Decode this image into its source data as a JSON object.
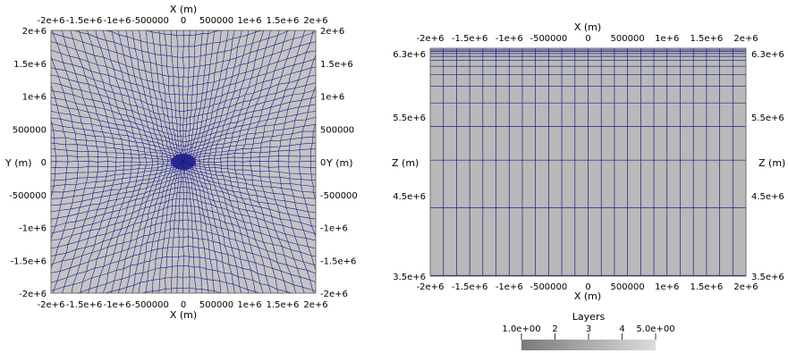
{
  "left_panel": {
    "x_title": "X (m)",
    "y_title": "Y (m)",
    "x_ticks": [
      "-2e+6",
      "-1.5e+6",
      "-1e+6",
      "-500000",
      "0",
      "500000",
      "1e+6",
      "1.5e+6",
      "2e+6"
    ],
    "y_ticks": [
      "2e+6",
      "1.5e+6",
      "1e+6",
      "500000",
      "0",
      "-500000",
      "-1e+6",
      "-1.5e+6",
      "-2e+6"
    ],
    "mesh_color": "#1a1a8c",
    "fill_color": "#c4c4c4"
  },
  "right_panel": {
    "x_title": "X (m)",
    "z_title": "Z (m)",
    "x_ticks": [
      "-2e+6",
      "-1.5e+6",
      "-1e+6",
      "-500000",
      "0",
      "500000",
      "1e+6",
      "1.5e+6",
      "2e+6"
    ],
    "z_ticks": [
      "6.3e+6",
      "5.5e+6",
      "4.5e+6",
      "3.5e+6"
    ],
    "mesh_color": "#1a1a8c",
    "fill_color": "#b9b9b9"
  },
  "colorbar": {
    "title": "Layers",
    "tick_labels": [
      "1.0e+00",
      "2",
      "3",
      "4",
      "5.0e+00"
    ],
    "range": [
      1,
      5
    ],
    "color_low": "#7a7a7a",
    "color_high": "#dcdcdc"
  }
}
